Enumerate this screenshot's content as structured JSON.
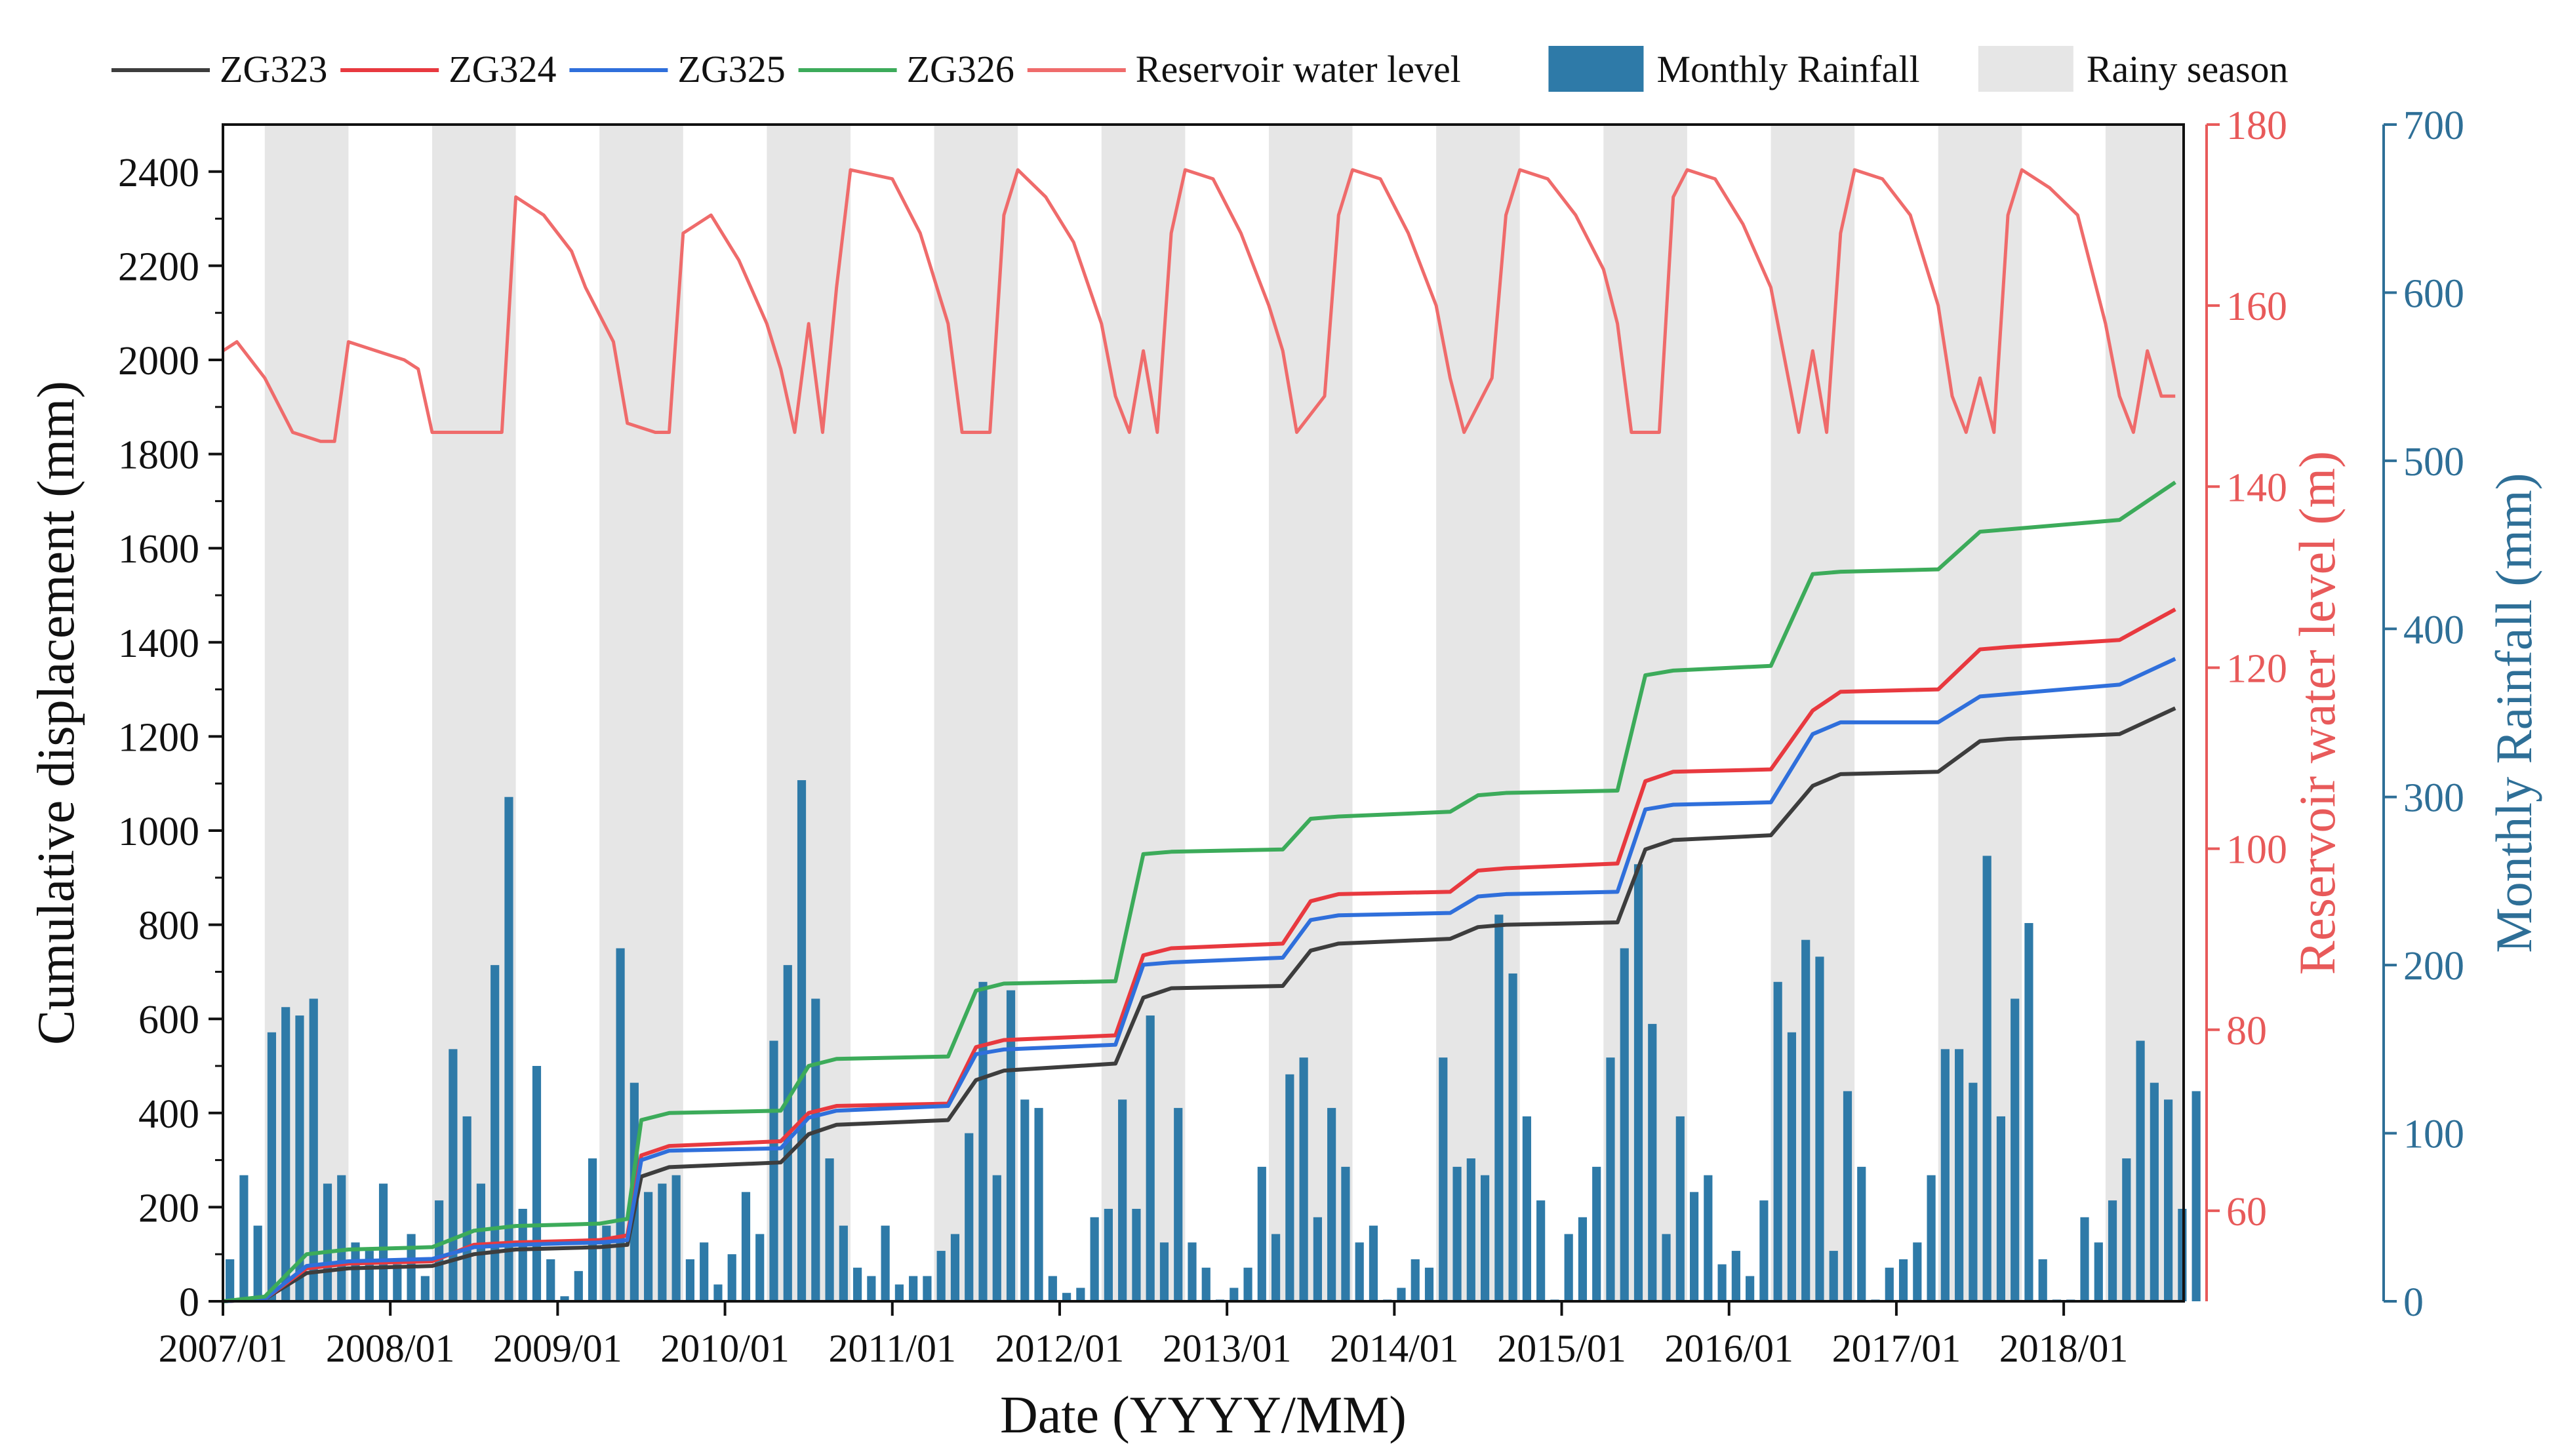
{
  "chart_data": {
    "type": "line",
    "x_axis": {
      "label": "Date (YYYY/MM)",
      "range": [
        "2007/01",
        "2018/09"
      ],
      "tick_labels": [
        "2007/01",
        "2008/01",
        "2009/01",
        "2010/01",
        "2011/01",
        "2012/01",
        "2013/01",
        "2014/01",
        "2015/01",
        "2016/01",
        "2017/01",
        "2018/01"
      ]
    },
    "y_axes": {
      "left": {
        "label": "Cumulative displacement (mm)",
        "range": [
          0,
          2500
        ],
        "ticks": [
          0,
          200,
          400,
          600,
          800,
          1000,
          1200,
          1400,
          1600,
          1800,
          2000,
          2200,
          2400
        ]
      },
      "right1": {
        "label": "Reservoir water level (m)",
        "range": [
          50,
          180
        ],
        "ticks": [
          60,
          80,
          100,
          120,
          140,
          160,
          180
        ],
        "color": "#e85a5a"
      },
      "right2": {
        "label": "Monthly Rainfall (mm)",
        "range": [
          0,
          700
        ],
        "ticks": [
          0,
          100,
          200,
          300,
          400,
          500,
          600,
          700
        ],
        "color": "#2e6f97"
      }
    },
    "legend": {
      "placement": "top",
      "entries": [
        {
          "label": "ZG323",
          "color": "#3d3d3d",
          "kind": "line"
        },
        {
          "label": "ZG324",
          "color": "#e8393f",
          "kind": "line"
        },
        {
          "label": "ZG325",
          "color": "#2f6fdb",
          "kind": "line"
        },
        {
          "label": "ZG326",
          "color": "#3cab5a",
          "kind": "line"
        },
        {
          "label": "Reservoir water level",
          "color": "#ef6b6b",
          "kind": "line"
        },
        {
          "label": "Monthly Rainfall",
          "color": "#2e7aa8",
          "kind": "bar"
        },
        {
          "label": "Rainy season",
          "color": "#e6e6e6",
          "kind": "band"
        }
      ]
    },
    "rainy_season": {
      "start_month": "04",
      "end_month": "09",
      "color": "#e6e6e6"
    },
    "displacement_series": [
      {
        "name": "ZG323",
        "color": "#3d3d3d",
        "points": [
          [
            "2007/01",
            0
          ],
          [
            "2007/04",
            5
          ],
          [
            "2007/07",
            60
          ],
          [
            "2007/10",
            70
          ],
          [
            "2008/04",
            75
          ],
          [
            "2008/07",
            100
          ],
          [
            "2008/10",
            110
          ],
          [
            "2009/04",
            115
          ],
          [
            "2009/06",
            120
          ],
          [
            "2009/07",
            265
          ],
          [
            "2009/09",
            285
          ],
          [
            "2010/05",
            295
          ],
          [
            "2010/07",
            355
          ],
          [
            "2010/09",
            375
          ],
          [
            "2011/05",
            385
          ],
          [
            "2011/07",
            470
          ],
          [
            "2011/09",
            490
          ],
          [
            "2012/05",
            505
          ],
          [
            "2012/07",
            645
          ],
          [
            "2012/09",
            665
          ],
          [
            "2013/05",
            670
          ],
          [
            "2013/07",
            745
          ],
          [
            "2013/09",
            760
          ],
          [
            "2014/05",
            770
          ],
          [
            "2014/07",
            795
          ],
          [
            "2014/09",
            800
          ],
          [
            "2015/05",
            805
          ],
          [
            "2015/07",
            960
          ],
          [
            "2015/09",
            980
          ],
          [
            "2016/04",
            990
          ],
          [
            "2016/07",
            1095
          ],
          [
            "2016/09",
            1120
          ],
          [
            "2017/04",
            1125
          ],
          [
            "2017/07",
            1190
          ],
          [
            "2017/09",
            1195
          ],
          [
            "2018/05",
            1205
          ],
          [
            "2018/09",
            1260
          ]
        ]
      },
      {
        "name": "ZG324",
        "color": "#e8393f",
        "points": [
          [
            "2007/01",
            0
          ],
          [
            "2007/04",
            5
          ],
          [
            "2007/07",
            70
          ],
          [
            "2007/10",
            80
          ],
          [
            "2008/04",
            85
          ],
          [
            "2008/07",
            120
          ],
          [
            "2008/10",
            125
          ],
          [
            "2009/04",
            130
          ],
          [
            "2009/06",
            140
          ],
          [
            "2009/07",
            310
          ],
          [
            "2009/09",
            330
          ],
          [
            "2010/05",
            340
          ],
          [
            "2010/07",
            400
          ],
          [
            "2010/09",
            415
          ],
          [
            "2011/05",
            420
          ],
          [
            "2011/07",
            540
          ],
          [
            "2011/09",
            555
          ],
          [
            "2012/05",
            565
          ],
          [
            "2012/07",
            735
          ],
          [
            "2012/09",
            750
          ],
          [
            "2013/05",
            760
          ],
          [
            "2013/07",
            850
          ],
          [
            "2013/09",
            865
          ],
          [
            "2014/05",
            870
          ],
          [
            "2014/07",
            915
          ],
          [
            "2014/09",
            920
          ],
          [
            "2015/05",
            930
          ],
          [
            "2015/07",
            1105
          ],
          [
            "2015/09",
            1125
          ],
          [
            "2016/04",
            1130
          ],
          [
            "2016/07",
            1255
          ],
          [
            "2016/09",
            1295
          ],
          [
            "2017/04",
            1300
          ],
          [
            "2017/07",
            1385
          ],
          [
            "2017/09",
            1390
          ],
          [
            "2018/05",
            1405
          ],
          [
            "2018/09",
            1470
          ]
        ]
      },
      {
        "name": "ZG325",
        "color": "#2f6fdb",
        "points": [
          [
            "2007/01",
            0
          ],
          [
            "2007/04",
            5
          ],
          [
            "2007/07",
            75
          ],
          [
            "2007/10",
            85
          ],
          [
            "2008/04",
            90
          ],
          [
            "2008/07",
            115
          ],
          [
            "2008/10",
            120
          ],
          [
            "2009/04",
            125
          ],
          [
            "2009/06",
            130
          ],
          [
            "2009/07",
            300
          ],
          [
            "2009/09",
            320
          ],
          [
            "2010/05",
            325
          ],
          [
            "2010/07",
            390
          ],
          [
            "2010/09",
            405
          ],
          [
            "2011/05",
            415
          ],
          [
            "2011/07",
            525
          ],
          [
            "2011/09",
            535
          ],
          [
            "2012/05",
            545
          ],
          [
            "2012/07",
            715
          ],
          [
            "2012/09",
            720
          ],
          [
            "2013/05",
            730
          ],
          [
            "2013/07",
            810
          ],
          [
            "2013/09",
            820
          ],
          [
            "2014/05",
            825
          ],
          [
            "2014/07",
            860
          ],
          [
            "2014/09",
            865
          ],
          [
            "2015/05",
            870
          ],
          [
            "2015/07",
            1045
          ],
          [
            "2015/09",
            1055
          ],
          [
            "2016/04",
            1060
          ],
          [
            "2016/07",
            1205
          ],
          [
            "2016/09",
            1230
          ],
          [
            "2017/04",
            1230
          ],
          [
            "2017/07",
            1285
          ],
          [
            "2017/09",
            1290
          ],
          [
            "2018/05",
            1310
          ],
          [
            "2018/09",
            1365
          ]
        ]
      },
      {
        "name": "ZG326",
        "color": "#3cab5a",
        "points": [
          [
            "2007/01",
            0
          ],
          [
            "2007/04",
            10
          ],
          [
            "2007/07",
            100
          ],
          [
            "2007/10",
            110
          ],
          [
            "2008/04",
            115
          ],
          [
            "2008/07",
            150
          ],
          [
            "2008/10",
            160
          ],
          [
            "2009/04",
            165
          ],
          [
            "2009/06",
            175
          ],
          [
            "2009/07",
            385
          ],
          [
            "2009/09",
            400
          ],
          [
            "2010/05",
            405
          ],
          [
            "2010/07",
            500
          ],
          [
            "2010/09",
            515
          ],
          [
            "2011/05",
            520
          ],
          [
            "2011/07",
            660
          ],
          [
            "2011/09",
            675
          ],
          [
            "2012/05",
            680
          ],
          [
            "2012/07",
            950
          ],
          [
            "2012/09",
            955
          ],
          [
            "2013/05",
            960
          ],
          [
            "2013/07",
            1025
          ],
          [
            "2013/09",
            1030
          ],
          [
            "2014/05",
            1040
          ],
          [
            "2014/07",
            1075
          ],
          [
            "2014/09",
            1080
          ],
          [
            "2015/05",
            1085
          ],
          [
            "2015/07",
            1330
          ],
          [
            "2015/09",
            1340
          ],
          [
            "2016/04",
            1350
          ],
          [
            "2016/07",
            1545
          ],
          [
            "2016/09",
            1550
          ],
          [
            "2017/04",
            1555
          ],
          [
            "2017/07",
            1635
          ],
          [
            "2017/09",
            1640
          ],
          [
            "2018/05",
            1660
          ],
          [
            "2018/09",
            1740
          ]
        ]
      }
    ],
    "reservoir_water_level": {
      "name": "Reservoir water level",
      "color": "#ef6b6b",
      "points": [
        [
          "2007/01",
          155
        ],
        [
          "2007/02",
          156
        ],
        [
          "2007/04",
          152
        ],
        [
          "2007/06",
          146
        ],
        [
          "2007/08",
          145
        ],
        [
          "2007/09",
          145
        ],
        [
          "2007/10",
          156
        ],
        [
          "2007/12",
          155
        ],
        [
          "2008/02",
          154
        ],
        [
          "2008/03",
          153
        ],
        [
          "2008/04",
          146
        ],
        [
          "2008/06",
          146
        ],
        [
          "2008/09",
          146
        ],
        [
          "2008/10",
          172
        ],
        [
          "2008/12",
          170
        ],
        [
          "2009/02",
          166
        ],
        [
          "2009/03",
          162
        ],
        [
          "2009/05",
          156
        ],
        [
          "2009/06",
          147
        ],
        [
          "2009/08",
          146
        ],
        [
          "2009/09",
          146
        ],
        [
          "2009/10",
          168
        ],
        [
          "2009/12",
          170
        ],
        [
          "2010/02",
          165
        ],
        [
          "2010/04",
          158
        ],
        [
          "2010/05",
          153
        ],
        [
          "2010/06",
          146
        ],
        [
          "2010/07",
          158
        ],
        [
          "2010/08",
          146
        ],
        [
          "2010/09",
          162
        ],
        [
          "2010/10",
          175
        ],
        [
          "2011/01",
          174
        ],
        [
          "2011/03",
          168
        ],
        [
          "2011/05",
          158
        ],
        [
          "2011/06",
          146
        ],
        [
          "2011/08",
          146
        ],
        [
          "2011/09",
          170
        ],
        [
          "2011/10",
          175
        ],
        [
          "2011/12",
          172
        ],
        [
          "2012/02",
          167
        ],
        [
          "2012/04",
          158
        ],
        [
          "2012/05",
          150
        ],
        [
          "2012/06",
          146
        ],
        [
          "2012/07",
          155
        ],
        [
          "2012/08",
          146
        ],
        [
          "2012/09",
          168
        ],
        [
          "2012/10",
          175
        ],
        [
          "2012/12",
          174
        ],
        [
          "2013/02",
          168
        ],
        [
          "2013/04",
          160
        ],
        [
          "2013/05",
          155
        ],
        [
          "2013/06",
          146
        ],
        [
          "2013/08",
          150
        ],
        [
          "2013/09",
          170
        ],
        [
          "2013/10",
          175
        ],
        [
          "2013/12",
          174
        ],
        [
          "2014/02",
          168
        ],
        [
          "2014/04",
          160
        ],
        [
          "2014/05",
          152
        ],
        [
          "2014/06",
          146
        ],
        [
          "2014/08",
          152
        ],
        [
          "2014/09",
          170
        ],
        [
          "2014/10",
          175
        ],
        [
          "2014/12",
          174
        ],
        [
          "2015/02",
          170
        ],
        [
          "2015/04",
          164
        ],
        [
          "2015/05",
          158
        ],
        [
          "2015/06",
          146
        ],
        [
          "2015/08",
          146
        ],
        [
          "2015/09",
          172
        ],
        [
          "2015/10",
          175
        ],
        [
          "2015/12",
          174
        ],
        [
          "2016/02",
          169
        ],
        [
          "2016/04",
          162
        ],
        [
          "2016/05",
          154
        ],
        [
          "2016/06",
          146
        ],
        [
          "2016/07",
          155
        ],
        [
          "2016/08",
          146
        ],
        [
          "2016/09",
          168
        ],
        [
          "2016/10",
          175
        ],
        [
          "2016/12",
          174
        ],
        [
          "2017/02",
          170
        ],
        [
          "2017/04",
          160
        ],
        [
          "2017/05",
          150
        ],
        [
          "2017/06",
          146
        ],
        [
          "2017/07",
          152
        ],
        [
          "2017/08",
          146
        ],
        [
          "2017/09",
          170
        ],
        [
          "2017/10",
          175
        ],
        [
          "2017/12",
          173
        ],
        [
          "2018/02",
          170
        ],
        [
          "2018/04",
          158
        ],
        [
          "2018/05",
          150
        ],
        [
          "2018/06",
          146
        ],
        [
          "2018/07",
          155
        ],
        [
          "2018/08",
          150
        ],
        [
          "2018/09",
          150
        ]
      ]
    },
    "monthly_rainfall": {
      "name": "Monthly Rainfall",
      "color": "#2e7aa8",
      "start": "2007/01",
      "values": [
        25,
        75,
        45,
        160,
        175,
        170,
        180,
        70,
        75,
        35,
        30,
        70,
        22,
        40,
        15,
        60,
        150,
        110,
        70,
        200,
        300,
        55,
        140,
        25,
        3,
        18,
        85,
        45,
        210,
        130,
        65,
        70,
        75,
        25,
        35,
        10,
        28,
        65,
        40,
        155,
        200,
        310,
        180,
        85,
        45,
        20,
        15,
        45,
        10,
        15,
        15,
        30,
        40,
        100,
        190,
        75,
        185,
        120,
        115,
        15,
        5,
        8,
        50,
        55,
        120,
        55,
        170,
        35,
        115,
        35,
        20,
        1,
        8,
        20,
        80,
        40,
        135,
        145,
        50,
        115,
        80,
        35,
        45,
        1,
        8,
        25,
        20,
        145,
        80,
        85,
        75,
        230,
        195,
        110,
        60,
        1,
        40,
        50,
        80,
        145,
        210,
        260,
        165,
        40,
        110,
        65,
        75,
        22,
        30,
        15,
        60,
        190,
        160,
        215,
        205,
        30,
        125,
        80,
        1,
        20,
        25,
        35,
        75,
        150,
        150,
        130,
        265,
        110,
        180,
        225,
        25,
        1,
        1,
        50,
        35,
        60,
        85,
        155,
        130,
        120,
        55,
        125
      ]
    }
  }
}
